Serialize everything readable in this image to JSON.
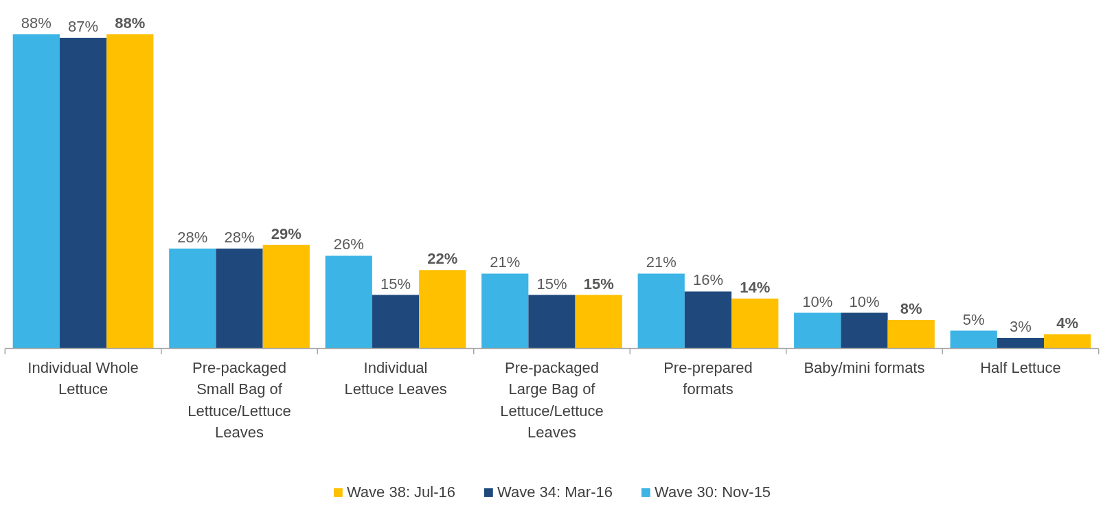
{
  "chart_data": {
    "type": "bar",
    "categories": [
      "Individual Whole Lettuce",
      "Pre-packaged Small Bag of Lettuce/Lettuce Leaves",
      "Individual Lettuce Leaves",
      "Pre-packaged Large Bag of Lettuce/Lettuce Leaves",
      "Pre-prepared formats",
      "Baby/mini formats",
      "Half Lettuce"
    ],
    "series": [
      {
        "name": "Wave 30: Nov-15",
        "color": "#3cb4e5",
        "values": [
          88,
          28,
          26,
          21,
          21,
          10,
          5
        ],
        "value_labels": [
          "88%",
          "28%",
          "26%",
          "21%",
          "21%",
          "10%",
          "5%"
        ]
      },
      {
        "name": "Wave 34: Mar-16",
        "color": "#1f497d",
        "values": [
          87,
          28,
          15,
          15,
          16,
          10,
          3
        ],
        "value_labels": [
          "87%",
          "28%",
          "15%",
          "15%",
          "16%",
          "10%",
          "3%"
        ]
      },
      {
        "name": "Wave 38: Jul-16",
        "color": "#ffc000",
        "values": [
          88,
          29,
          22,
          15,
          14,
          8,
          4
        ],
        "value_labels": [
          "88%",
          "29%",
          "22%",
          "15%",
          "14%",
          "8%",
          "4%"
        ]
      }
    ],
    "legend": "bottom",
    "grid": false
  }
}
